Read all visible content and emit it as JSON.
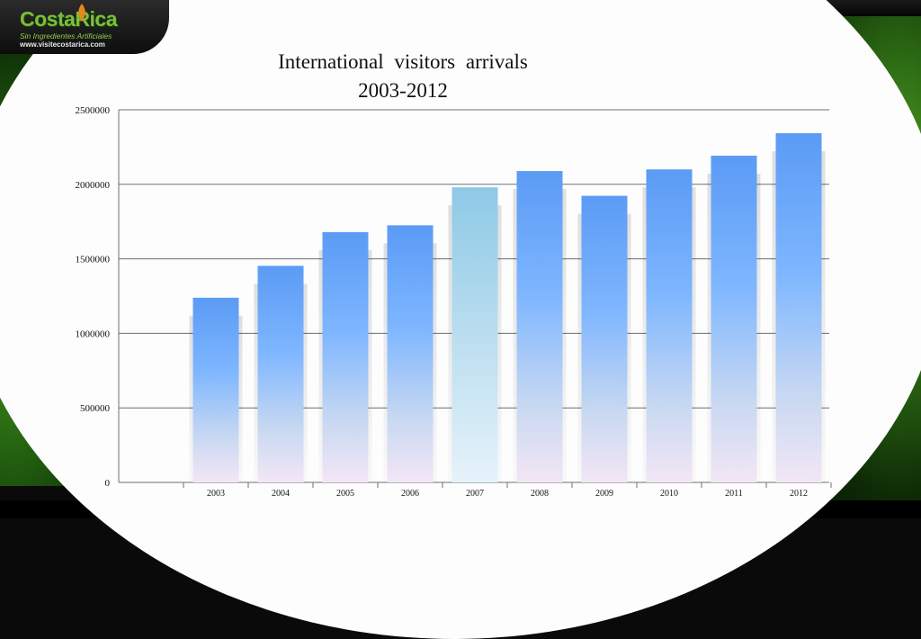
{
  "logo": {
    "brand": "CostaRica",
    "tagline": "Sin Ingredientes Artificiales",
    "url": "www.visitecostarica.com"
  },
  "chart_data": {
    "type": "bar",
    "title": "International  visitors  arrivals",
    "subtitle": "2003-2012",
    "xlabel": "",
    "ylabel": "",
    "categories": [
      "2003",
      "2004",
      "2005",
      "2006",
      "2007",
      "2008",
      "2009",
      "2010",
      "2011",
      "2012"
    ],
    "values": [
      1239000,
      1453000,
      1679000,
      1725000,
      1980000,
      2089000,
      1923000,
      2100000,
      2192000,
      2343000
    ],
    "highlight_index": 4,
    "ylim": [
      0,
      2500000
    ],
    "yticks": [
      "0",
      "500000",
      "1000000",
      "1500000",
      "2000000",
      "2500000"
    ],
    "grid": true,
    "legend": "none",
    "colors": {
      "bar_top": "#5b9bf5",
      "bar_mid": "#7eb6ff",
      "bar_bottom": "#f3e6f5",
      "highlight_top": "#8ec9e6",
      "highlight_bottom": "#e6f2fa",
      "grid": "#6e6e6e"
    }
  }
}
